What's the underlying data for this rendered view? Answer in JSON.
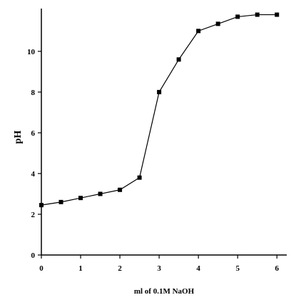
{
  "chart_data": {
    "type": "line",
    "xlabel": "ml of 0.1M NaOH",
    "ylabel": "pH",
    "xlim": [
      0,
      6.25
    ],
    "ylim": [
      0,
      12.1
    ],
    "xticks": [
      0,
      1,
      2,
      3,
      4,
      5,
      6
    ],
    "yticks": [
      0,
      2,
      4,
      6,
      8,
      10
    ],
    "grid": false,
    "series": [
      {
        "marker": "square",
        "color": "#000000",
        "points": [
          {
            "x": 0.0,
            "y": 2.45
          },
          {
            "x": 0.5,
            "y": 2.6
          },
          {
            "x": 1.0,
            "y": 2.8
          },
          {
            "x": 1.5,
            "y": 3.0
          },
          {
            "x": 2.0,
            "y": 3.2
          },
          {
            "x": 2.5,
            "y": 3.8
          },
          {
            "x": 3.0,
            "y": 8.0
          },
          {
            "x": 3.5,
            "y": 9.6
          },
          {
            "x": 4.0,
            "y": 11.0
          },
          {
            "x": 4.5,
            "y": 11.35
          },
          {
            "x": 5.0,
            "y": 11.7
          },
          {
            "x": 5.5,
            "y": 11.8
          },
          {
            "x": 6.0,
            "y": 11.8
          }
        ]
      }
    ]
  }
}
